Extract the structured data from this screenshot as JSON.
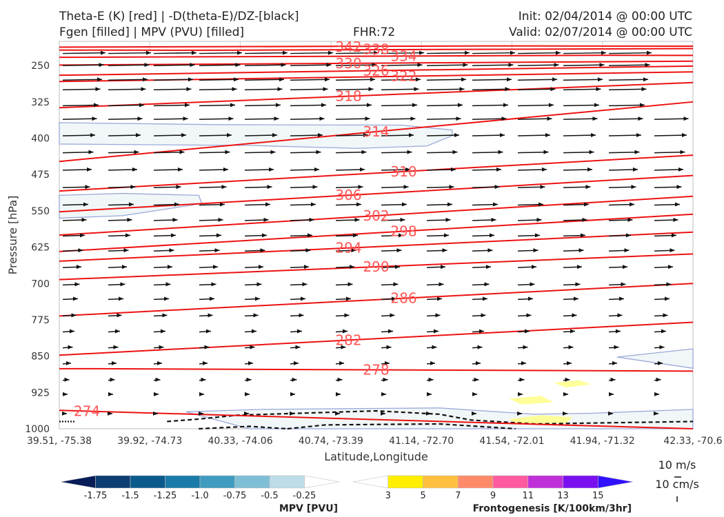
{
  "header": {
    "line1_left": "Theta-E (K) [red] | -D(theta-E)/DZ-[black]",
    "line2_left": "Fgen [filled] | MPV (PVU) [filled]",
    "fhr": "FHR:72",
    "init": "Init: 02/04/2014 @ 00:00 UTC",
    "valid": "Valid: 02/07/2014 @ 00:00 UTC"
  },
  "chart_data": {
    "type": "cross-section",
    "xlabel": "Latitude,Longitude",
    "ylabel": "Pressure [hPa]",
    "ylim": [
      1000,
      200
    ],
    "x_ticks": [
      "39.51, -75.38",
      "39.92, -74.73",
      "40.33, -74.06",
      "40.74, -73.39",
      "41.14, -72.70",
      "41.54, -72.01",
      "41.94, -71.32",
      "42.33, -70.6"
    ],
    "y_ticks": [
      250,
      325,
      400,
      475,
      550,
      625,
      700,
      775,
      850,
      925,
      1000
    ],
    "theta_e_contours": [
      {
        "label": "342",
        "p": [
          212,
          210
        ]
      },
      {
        "label": "338",
        "p": [
          218,
          215
        ]
      },
      {
        "label": "334",
        "p": [
          233,
          229
        ]
      },
      {
        "label": "330",
        "p": [
          249,
          241
        ]
      },
      {
        "label": "326",
        "p": [
          270,
          251
        ]
      },
      {
        "label": "322",
        "p": [
          283,
          263
        ]
      },
      {
        "label": "318",
        "p": [
          337,
          285
        ]
      },
      {
        "label": "314",
        "p": [
          448,
          325
        ]
      },
      {
        "label": "310",
        "p": [
          509,
          435
        ]
      },
      {
        "label": "306",
        "p": [
          552,
          477
        ]
      },
      {
        "label": "302",
        "p": [
          600,
          520
        ]
      },
      {
        "label": "298",
        "p": [
          634,
          557
        ]
      },
      {
        "label": "294",
        "p": [
          654,
          594
        ]
      },
      {
        "label": "290",
        "p": [
          692,
          639
        ]
      },
      {
        "label": "286",
        "p": [
          767,
          700
        ]
      },
      {
        "label": "282",
        "p": [
          848,
          780
        ]
      },
      {
        "label": "278",
        "p": [
          876,
          881
        ]
      },
      {
        "label": "274",
        "p": [
          962,
          1000
        ]
      }
    ],
    "wind_key": [
      "10 m/s",
      "10 cm/s"
    ],
    "colorbars": [
      {
        "title": "MPV [PVU]",
        "ticks": [
          "-1.75",
          "-1.5",
          "-1.25",
          "-1.0",
          "-0.75",
          "-0.5",
          "-0.25"
        ],
        "colors": [
          "#081d58",
          "#0c3d73",
          "#0a5a8c",
          "#1a7ba8",
          "#3f9cc0",
          "#7fbfd6",
          "#bcdde8",
          "#ffffff"
        ]
      },
      {
        "title": "Frontogenesis [K/100km/3hr]",
        "ticks": [
          "3",
          "5",
          "7",
          "9",
          "11",
          "13",
          "15"
        ],
        "colors": [
          "#ffffff",
          "#ffee00",
          "#ffc040",
          "#ff8a6a",
          "#ff5aa0",
          "#c030d8",
          "#7a10f0",
          "#3010ff"
        ]
      }
    ]
  }
}
